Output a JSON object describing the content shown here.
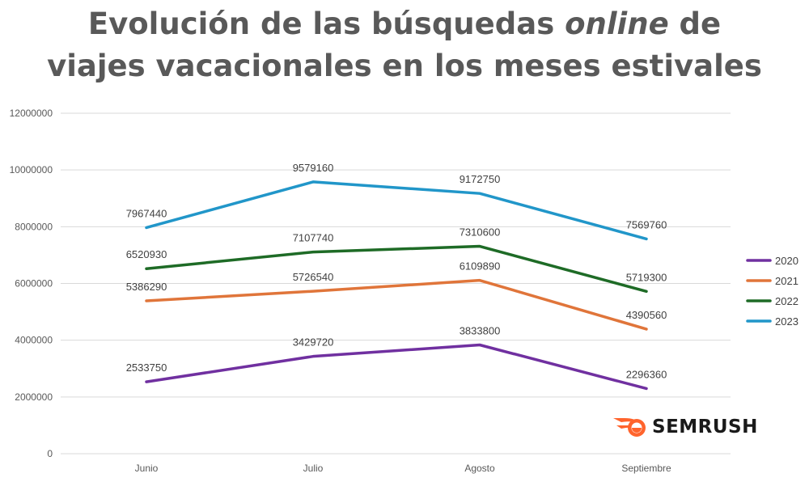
{
  "title_line1_pre": "Evolución de las búsquedas ",
  "title_line1_em": "online",
  "title_line1_post": " de",
  "title_line2": "viajes vacacionales en los meses estivales",
  "logo_text": "SEMRUSH",
  "colors": {
    "2020": "#7030a0",
    "2021": "#e0753a",
    "2022": "#1e6b26",
    "2023": "#2196c9",
    "grid": "#d9d9d9",
    "logo_accent": "#ff642d"
  },
  "chart_data": {
    "type": "line",
    "categories": [
      "Junio",
      "Julio",
      "Agosto",
      "Septiembre"
    ],
    "series": [
      {
        "name": "2020",
        "values": [
          2533750,
          3429720,
          3833800,
          2296360
        ]
      },
      {
        "name": "2021",
        "values": [
          5386290,
          5726540,
          6109890,
          4390560
        ]
      },
      {
        "name": "2022",
        "values": [
          6520930,
          7107740,
          7310600,
          5719300
        ]
      },
      {
        "name": "2023",
        "values": [
          7967440,
          9579160,
          9172750,
          7569760
        ]
      }
    ],
    "y_ticks": [
      "0",
      "2000000",
      "4000000",
      "6000000",
      "8000000",
      "10000000",
      "12000000"
    ],
    "ylim": [
      0,
      12000000
    ],
    "grid": true,
    "legend": "right"
  }
}
